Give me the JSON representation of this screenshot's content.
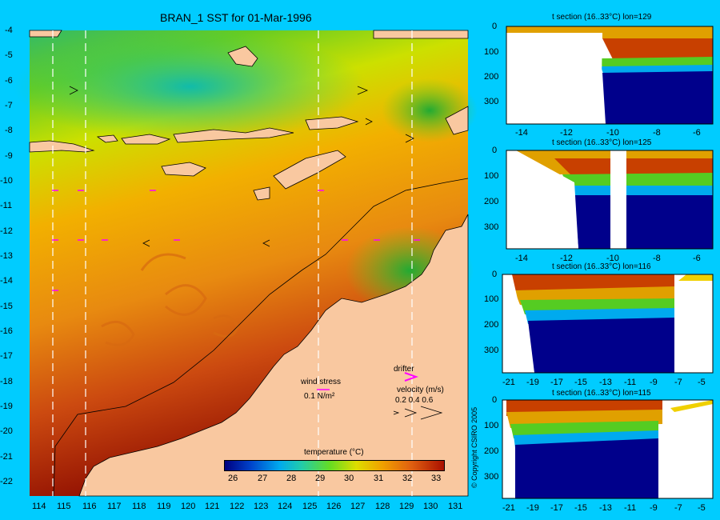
{
  "map": {
    "title": "BRAN_1 SST for 01-Mar-1996",
    "lat_ticks": [
      "-4",
      "-5",
      "-6",
      "-7",
      "-8",
      "-9",
      "-10",
      "-11",
      "-12",
      "-13",
      "-14",
      "-15",
      "-16",
      "-17",
      "-18",
      "-19",
      "-20",
      "-21",
      "-22"
    ],
    "lon_ticks": [
      "114",
      "115",
      "116",
      "117",
      "118",
      "119",
      "120",
      "121",
      "122",
      "123",
      "124",
      "125",
      "126",
      "127",
      "128",
      "129",
      "130",
      "131"
    ],
    "section_lines_lon": [
      114.5,
      115.8,
      125.4,
      129.2
    ],
    "colors": {
      "background": "#00ccff",
      "land": "#f9c8a0",
      "hot": "#8b0a00",
      "cold": "#00008b"
    }
  },
  "legend": {
    "title": "temperature (°C)",
    "ticks": [
      "26",
      "27",
      "28",
      "29",
      "30",
      "31",
      "32",
      "33"
    ],
    "wind_stress_label": "wind stress",
    "wind_stress_value": "0.1 N/m²",
    "drifter_label": "drifter",
    "velocity_label": "velocity (m/s)",
    "velocity_values": "0.2 0.4 0.6"
  },
  "copyright": "© Copyright CSIRO 2005",
  "sections": [
    {
      "title": "t section (16..33°C) lon=129",
      "x_ticks": [
        "-14",
        "-12",
        "-10",
        "-8",
        "-6"
      ],
      "y_ticks": [
        "0",
        "100",
        "200",
        "300"
      ]
    },
    {
      "title": "t section (16..33°C) lon=125",
      "x_ticks": [
        "-14",
        "-12",
        "-10",
        "-8",
        "-6"
      ],
      "y_ticks": [
        "0",
        "100",
        "200",
        "300"
      ]
    },
    {
      "title": "t section (16..33°C) lon=116",
      "x_ticks": [
        "-21",
        "-19",
        "-17",
        "-15",
        "-13",
        "-11",
        "-9",
        "-7",
        "-5"
      ],
      "y_ticks": [
        "0",
        "100",
        "200",
        "300"
      ]
    },
    {
      "title": "t section (16..33°C) lon=115",
      "x_ticks": [
        "-21",
        "-19",
        "-17",
        "-15",
        "-13",
        "-11",
        "-9",
        "-7",
        "-5"
      ],
      "y_ticks": [
        "0",
        "100",
        "200",
        "300"
      ]
    }
  ]
}
